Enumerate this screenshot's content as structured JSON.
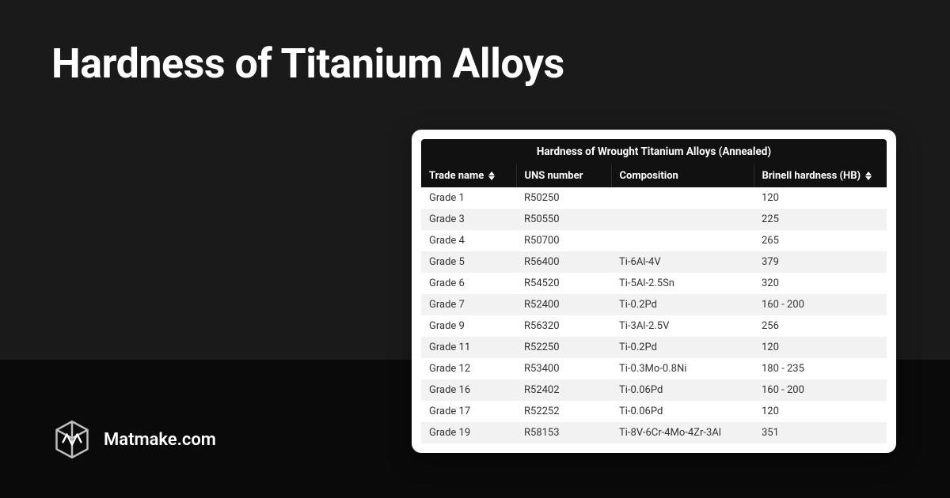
{
  "page": {
    "title": "Hardness of Titanium Alloys"
  },
  "brand": {
    "name": "Matmake.com"
  },
  "table": {
    "caption": "Hardness of Wrought Titanium Alloys (Annealed)",
    "columns": [
      {
        "label": "Trade name",
        "sortable": true
      },
      {
        "label": "UNS number",
        "sortable": false
      },
      {
        "label": "Composition",
        "sortable": false
      },
      {
        "label": "Brinell hardness (HB)",
        "sortable": true
      }
    ],
    "rows": [
      {
        "trade": "Grade 1",
        "uns": "R50250",
        "comp": "",
        "hb": "120"
      },
      {
        "trade": "Grade 3",
        "uns": "R50550",
        "comp": "",
        "hb": "225"
      },
      {
        "trade": "Grade 4",
        "uns": "R50700",
        "comp": "",
        "hb": "265"
      },
      {
        "trade": "Grade 5",
        "uns": "R56400",
        "comp": "Ti-6Al-4V",
        "hb": "379"
      },
      {
        "trade": "Grade 6",
        "uns": "R54520",
        "comp": "Ti-5Al-2.5Sn",
        "hb": "320"
      },
      {
        "trade": "Grade 7",
        "uns": "R52400",
        "comp": "Ti-0.2Pd",
        "hb": "160 - 200"
      },
      {
        "trade": "Grade 9",
        "uns": "R56320",
        "comp": "Ti-3Al-2.5V",
        "hb": "256"
      },
      {
        "trade": "Grade 11",
        "uns": "R52250",
        "comp": "Ti-0.2Pd",
        "hb": "120"
      },
      {
        "trade": "Grade 12",
        "uns": "R53400",
        "comp": "Ti-0.3Mo-0.8Ni",
        "hb": "180 - 235"
      },
      {
        "trade": "Grade 16",
        "uns": "R52402",
        "comp": "Ti-0.06Pd",
        "hb": "160 - 200"
      },
      {
        "trade": "Grade 17",
        "uns": "R52252",
        "comp": "Ti-0.06Pd",
        "hb": "120"
      },
      {
        "trade": "Grade 19",
        "uns": "R58153",
        "comp": "Ti-8V-6Cr-4Mo-4Zr-3Al",
        "hb": "351"
      }
    ]
  },
  "colors": {
    "page_bg": "#1a1a1a",
    "band_bg": "#0a0a0a",
    "card_bg": "#ffffff",
    "header_bg": "#111111",
    "row_alt_bg": "#f2f2f2",
    "text_light": "#ffffff",
    "text_dark": "#333333",
    "logo_stroke": "#bfbfbf"
  }
}
